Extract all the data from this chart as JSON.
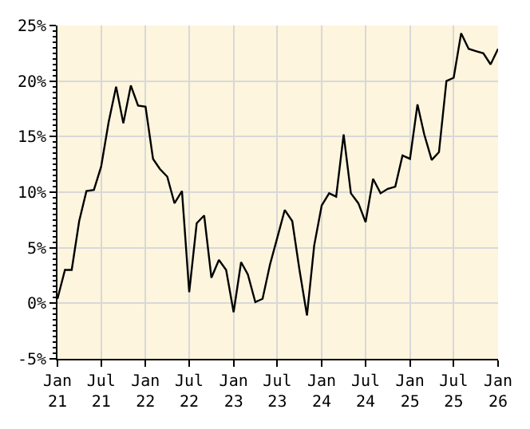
{
  "chart_data": {
    "type": "line",
    "x": [
      "2021-01",
      "2021-02",
      "2021-03",
      "2021-04",
      "2021-05",
      "2021-06",
      "2021-07",
      "2021-08",
      "2021-09",
      "2021-10",
      "2021-11",
      "2021-12",
      "2022-01",
      "2022-02",
      "2022-03",
      "2022-04",
      "2022-05",
      "2022-06",
      "2022-07",
      "2022-08",
      "2022-09",
      "2022-10",
      "2022-11",
      "2022-12",
      "2023-01",
      "2023-02",
      "2023-03",
      "2023-04",
      "2023-05",
      "2023-06",
      "2023-07",
      "2023-08",
      "2023-09",
      "2023-10",
      "2023-11",
      "2023-12",
      "2024-01",
      "2024-02",
      "2024-03",
      "2024-04",
      "2024-05",
      "2024-06",
      "2024-07",
      "2024-08",
      "2024-09",
      "2024-10",
      "2024-11",
      "2024-12",
      "2025-01",
      "2025-02",
      "2025-03",
      "2025-04",
      "2025-05",
      "2025-06",
      "2025-07",
      "2025-08",
      "2025-09",
      "2025-10",
      "2025-11",
      "2025-12",
      "2026-01"
    ],
    "series": [
      {
        "color": "#000000",
        "values": [
          0.4,
          3.0,
          3.0,
          7.4,
          10.1,
          10.2,
          12.3,
          16.3,
          19.5,
          16.2,
          19.6,
          17.8,
          17.7,
          13.0,
          12.1,
          11.4,
          9.0,
          10.1,
          1.0,
          7.2,
          7.9,
          2.3,
          3.9,
          3.0,
          -0.8,
          3.7,
          2.6,
          0.1,
          0.4,
          3.5,
          5.9,
          8.4,
          7.4,
          3.0,
          -1.1,
          5.2,
          8.8,
          9.9,
          9.6,
          15.2,
          9.9,
          9.0,
          7.3,
          11.2,
          9.9,
          10.3,
          10.5,
          13.3,
          13.0,
          17.9,
          15.2,
          12.9,
          13.6,
          20.0,
          20.3,
          24.3,
          22.9,
          22.7,
          22.5,
          21.5,
          22.9
        ]
      }
    ],
    "xlim": [
      "2021-01",
      "2026-01"
    ],
    "xticks": [
      {
        "value": "2021-01",
        "label": "Jan\n21"
      },
      {
        "value": "2021-07",
        "label": "Jul\n21"
      },
      {
        "value": "2022-01",
        "label": "Jan\n22"
      },
      {
        "value": "2022-07",
        "label": "Jul\n22"
      },
      {
        "value": "2023-01",
        "label": "Jan\n23"
      },
      {
        "value": "2023-07",
        "label": "Jul\n23"
      },
      {
        "value": "2024-01",
        "label": "Jan\n24"
      },
      {
        "value": "2024-07",
        "label": "Jul\n24"
      },
      {
        "value": "2025-01",
        "label": "Jan\n25"
      },
      {
        "value": "2025-07",
        "label": "Jul\n25"
      },
      {
        "value": "2026-01",
        "label": "Jan\n26"
      }
    ],
    "ylim": [
      -5,
      25
    ],
    "yticks": [
      {
        "value": -5,
        "label": "-5%"
      },
      {
        "value": 0,
        "label": "0%"
      },
      {
        "value": 5,
        "label": "5%"
      },
      {
        "value": 10,
        "label": "10%"
      },
      {
        "value": 15,
        "label": "15%"
      },
      {
        "value": 20,
        "label": "20%"
      },
      {
        "value": 25,
        "label": "25%"
      }
    ],
    "grid": true,
    "marker": "none",
    "line_style": "solid"
  }
}
